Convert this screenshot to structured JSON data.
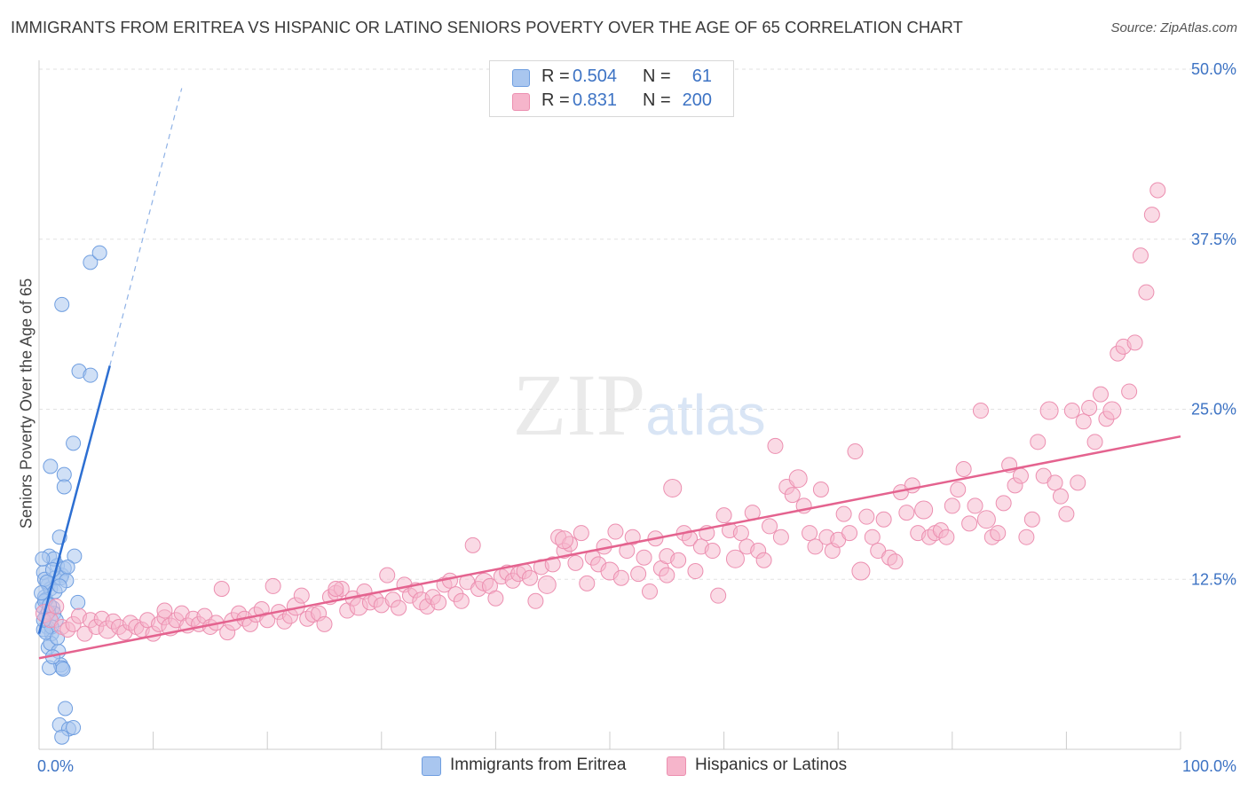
{
  "title": "IMMIGRANTS FROM ERITREA VS HISPANIC OR LATINO SENIORS POVERTY OVER THE AGE OF 65 CORRELATION CHART",
  "source": "Source: ZipAtlas.com",
  "watermark": "ZIPatlas",
  "colors": {
    "blue_fill": "#a9c6ef",
    "blue_stroke": "#6f9ee0",
    "blue_line": "#2d6fd2",
    "pink_fill": "#f6b5cb",
    "pink_stroke": "#ec8fb0",
    "pink_line": "#e4638f",
    "axis_label": "#3d73c4"
  },
  "stats": {
    "blue": {
      "r_label": "R =",
      "r_value": "0.504",
      "n_label": "N =",
      "n_value": "61"
    },
    "pink": {
      "r_label": "R =",
      "r_value": "0.831",
      "n_label": "N =",
      "n_value": "200"
    }
  },
  "legend": {
    "blue_label": "Immigrants from Eritrea",
    "pink_label": "Hispanics or Latinos"
  },
  "chart_data": {
    "type": "scatter",
    "title": "IMMIGRANTS FROM ERITREA VS HISPANIC OR LATINO SENIORS POVERTY OVER THE AGE OF 65 CORRELATION CHART",
    "xlabel": "",
    "ylabel": "Seniors Poverty Over the Age of 65",
    "xlim": [
      0,
      100
    ],
    "ylim": [
      0,
      50
    ],
    "x_tick_labels": [
      "0.0%",
      "100.0%"
    ],
    "y_ticks": [
      12.5,
      25.0,
      37.5,
      50.0
    ],
    "y_tick_labels": [
      "12.5%",
      "25.0%",
      "37.5%",
      "50.0%"
    ],
    "grid": true,
    "legend_position": "bottom-center",
    "series": [
      {
        "name": "Immigrants from Eritrea",
        "color": "#a9c6ef",
        "trend": {
          "x": [
            0.0,
            6.2
          ],
          "y": [
            8.5,
            28.2
          ],
          "dashed_extension": {
            "x": [
              6.2,
              12.5
            ],
            "y": [
              28.2,
              48.6
            ]
          }
        },
        "points": [
          [
            0.3,
            10.5
          ],
          [
            0.5,
            11.2
          ],
          [
            0.6,
            9.8
          ],
          [
            0.8,
            12.1
          ],
          [
            0.4,
            13.0
          ],
          [
            1.0,
            11.8
          ],
          [
            1.2,
            10.4
          ],
          [
            0.7,
            9.0
          ],
          [
            1.4,
            12.6
          ],
          [
            0.9,
            14.2
          ],
          [
            1.6,
            13.5
          ],
          [
            1.1,
            8.5
          ],
          [
            1.8,
            15.6
          ],
          [
            0.6,
            11.0
          ],
          [
            2.0,
            12.8
          ],
          [
            1.3,
            10.0
          ],
          [
            0.4,
            8.8
          ],
          [
            1.5,
            9.5
          ],
          [
            2.2,
            13.3
          ],
          [
            0.8,
            7.5
          ],
          [
            1.0,
            7.8
          ],
          [
            1.7,
            7.2
          ],
          [
            1.9,
            6.2
          ],
          [
            2.0,
            6.0
          ],
          [
            2.1,
            5.9
          ],
          [
            0.9,
            6.0
          ],
          [
            1.2,
            6.8
          ],
          [
            2.3,
            3.0
          ],
          [
            1.8,
            1.8
          ],
          [
            2.6,
            1.5
          ],
          [
            3.0,
            1.6
          ],
          [
            2.0,
            0.9
          ],
          [
            1.0,
            20.8
          ],
          [
            2.2,
            20.2
          ],
          [
            2.2,
            19.3
          ],
          [
            3.0,
            22.5
          ],
          [
            3.5,
            27.8
          ],
          [
            4.5,
            27.5
          ],
          [
            2.0,
            32.7
          ],
          [
            4.5,
            35.8
          ],
          [
            5.3,
            36.5
          ],
          [
            3.1,
            14.2
          ],
          [
            3.4,
            10.8
          ],
          [
            0.5,
            12.5
          ],
          [
            1.3,
            14.0
          ],
          [
            0.7,
            12.3
          ],
          [
            1.9,
            12.6
          ],
          [
            0.3,
            14.0
          ],
          [
            2.5,
            13.4
          ],
          [
            1.1,
            9.0
          ],
          [
            0.5,
            10.9
          ],
          [
            0.2,
            11.5
          ],
          [
            1.4,
            11.6
          ],
          [
            0.8,
            10.1
          ],
          [
            2.4,
            12.4
          ],
          [
            0.6,
            8.6
          ],
          [
            1.6,
            8.2
          ],
          [
            0.4,
            9.5
          ],
          [
            1.2,
            13.2
          ],
          [
            0.9,
            10.6
          ],
          [
            1.8,
            12.0
          ]
        ]
      },
      {
        "name": "Hispanics or Latinos",
        "color": "#f6b5cb",
        "trend": {
          "x": [
            0.0,
            100.0
          ],
          "y": [
            6.7,
            23.0
          ]
        },
        "points": [
          [
            0.5,
            10.0
          ],
          [
            1.0,
            9.5
          ],
          [
            1.5,
            10.5
          ],
          [
            2.0,
            9.0
          ],
          [
            2.5,
            8.8
          ],
          [
            3.0,
            9.2
          ],
          [
            3.5,
            9.8
          ],
          [
            4.0,
            8.5
          ],
          [
            4.5,
            9.5
          ],
          [
            5.0,
            9.0
          ],
          [
            5.5,
            9.6
          ],
          [
            6.0,
            8.8
          ],
          [
            6.5,
            9.4
          ],
          [
            7.0,
            9.0
          ],
          [
            7.5,
            8.6
          ],
          [
            8.0,
            9.3
          ],
          [
            8.5,
            9.0
          ],
          [
            9.0,
            8.8
          ],
          [
            9.5,
            9.5
          ],
          [
            10.0,
            8.5
          ],
          [
            10.5,
            9.2
          ],
          [
            11.0,
            9.7
          ],
          [
            11.5,
            9.0
          ],
          [
            12.0,
            9.5
          ],
          [
            12.5,
            10.0
          ],
          [
            13.0,
            9.1
          ],
          [
            13.5,
            9.6
          ],
          [
            14.0,
            9.2
          ],
          [
            14.5,
            9.8
          ],
          [
            15.0,
            9.0
          ],
          [
            15.5,
            9.3
          ],
          [
            16.0,
            11.8
          ],
          [
            16.5,
            8.6
          ],
          [
            17.0,
            9.4
          ],
          [
            17.5,
            10.0
          ],
          [
            18.0,
            9.6
          ],
          [
            18.5,
            9.2
          ],
          [
            19.0,
            9.9
          ],
          [
            19.5,
            10.3
          ],
          [
            20.0,
            9.5
          ],
          [
            20.5,
            12.0
          ],
          [
            21.0,
            10.1
          ],
          [
            21.5,
            9.4
          ],
          [
            22.0,
            9.8
          ],
          [
            22.5,
            10.5
          ],
          [
            23.0,
            11.3
          ],
          [
            23.5,
            9.6
          ],
          [
            24.0,
            9.9
          ],
          [
            24.5,
            10.0
          ],
          [
            25.0,
            9.2
          ],
          [
            25.5,
            11.2
          ],
          [
            26.0,
            11.5
          ],
          [
            26.5,
            11.8
          ],
          [
            27.0,
            10.2
          ],
          [
            27.5,
            11.1
          ],
          [
            28.0,
            10.5
          ],
          [
            28.5,
            11.6
          ],
          [
            29.0,
            10.8
          ],
          [
            29.5,
            11.0
          ],
          [
            30.0,
            10.6
          ],
          [
            30.5,
            12.8
          ],
          [
            31.0,
            11.0
          ],
          [
            31.5,
            10.4
          ],
          [
            32.0,
            12.1
          ],
          [
            32.5,
            11.3
          ],
          [
            33.0,
            11.7
          ],
          [
            33.5,
            10.9
          ],
          [
            34.0,
            10.5
          ],
          [
            34.5,
            11.2
          ],
          [
            35.0,
            10.8
          ],
          [
            35.5,
            12.1
          ],
          [
            36.0,
            12.4
          ],
          [
            36.5,
            11.4
          ],
          [
            37.0,
            10.9
          ],
          [
            37.5,
            12.3
          ],
          [
            38.0,
            15.0
          ],
          [
            38.5,
            11.8
          ],
          [
            39.0,
            12.3
          ],
          [
            39.5,
            12.0
          ],
          [
            40.0,
            11.1
          ],
          [
            40.5,
            12.7
          ],
          [
            41.0,
            13.0
          ],
          [
            41.5,
            12.4
          ],
          [
            42.0,
            12.9
          ],
          [
            42.5,
            13.1
          ],
          [
            43.0,
            12.6
          ],
          [
            43.5,
            10.9
          ],
          [
            44.0,
            13.4
          ],
          [
            44.5,
            12.1
          ],
          [
            45.0,
            13.6
          ],
          [
            45.5,
            15.6
          ],
          [
            46.0,
            14.6
          ],
          [
            46.5,
            15.1
          ],
          [
            47.0,
            13.7
          ],
          [
            47.5,
            15.9
          ],
          [
            48.0,
            12.2
          ],
          [
            48.5,
            14.1
          ],
          [
            49.0,
            13.6
          ],
          [
            49.5,
            14.9
          ],
          [
            50.0,
            13.1
          ],
          [
            50.5,
            16.0
          ],
          [
            51.0,
            12.6
          ],
          [
            51.5,
            14.6
          ],
          [
            52.0,
            15.6
          ],
          [
            52.5,
            12.9
          ],
          [
            53.0,
            14.1
          ],
          [
            53.5,
            11.6
          ],
          [
            54.0,
            15.5
          ],
          [
            54.5,
            13.3
          ],
          [
            55.0,
            14.2
          ],
          [
            55.5,
            19.2
          ],
          [
            56.0,
            13.9
          ],
          [
            56.5,
            15.9
          ],
          [
            57.0,
            15.5
          ],
          [
            57.5,
            13.1
          ],
          [
            58.0,
            14.9
          ],
          [
            58.5,
            15.9
          ],
          [
            59.0,
            14.6
          ],
          [
            59.5,
            11.3
          ],
          [
            60.0,
            17.2
          ],
          [
            60.5,
            16.1
          ],
          [
            61.0,
            14.0
          ],
          [
            61.5,
            15.9
          ],
          [
            62.0,
            14.9
          ],
          [
            62.5,
            17.4
          ],
          [
            63.0,
            14.6
          ],
          [
            63.5,
            13.9
          ],
          [
            64.0,
            16.4
          ],
          [
            64.5,
            22.3
          ],
          [
            65.0,
            15.6
          ],
          [
            65.5,
            19.3
          ],
          [
            66.0,
            18.7
          ],
          [
            66.5,
            19.9
          ],
          [
            67.0,
            17.9
          ],
          [
            67.5,
            15.9
          ],
          [
            68.0,
            14.9
          ],
          [
            68.5,
            19.1
          ],
          [
            69.0,
            15.6
          ],
          [
            69.5,
            14.6
          ],
          [
            70.0,
            15.4
          ],
          [
            70.5,
            17.3
          ],
          [
            71.0,
            15.9
          ],
          [
            71.5,
            21.9
          ],
          [
            72.0,
            13.1
          ],
          [
            72.5,
            17.1
          ],
          [
            73.0,
            15.6
          ],
          [
            73.5,
            14.6
          ],
          [
            74.0,
            16.9
          ],
          [
            74.5,
            14.1
          ],
          [
            75.0,
            13.8
          ],
          [
            75.5,
            18.9
          ],
          [
            76.0,
            17.4
          ],
          [
            76.5,
            19.4
          ],
          [
            77.0,
            15.9
          ],
          [
            77.5,
            17.6
          ],
          [
            78.0,
            15.6
          ],
          [
            78.5,
            15.9
          ],
          [
            79.0,
            16.1
          ],
          [
            79.5,
            15.6
          ],
          [
            80.0,
            17.9
          ],
          [
            80.5,
            19.1
          ],
          [
            81.0,
            20.6
          ],
          [
            81.5,
            16.6
          ],
          [
            82.0,
            17.9
          ],
          [
            82.5,
            24.9
          ],
          [
            83.0,
            16.9
          ],
          [
            83.5,
            15.6
          ],
          [
            84.0,
            15.9
          ],
          [
            84.5,
            18.1
          ],
          [
            85.0,
            20.9
          ],
          [
            85.5,
            19.4
          ],
          [
            86.0,
            20.1
          ],
          [
            86.5,
            15.6
          ],
          [
            87.0,
            16.9
          ],
          [
            87.5,
            22.6
          ],
          [
            88.0,
            20.1
          ],
          [
            88.5,
            24.9
          ],
          [
            89.0,
            19.6
          ],
          [
            89.5,
            18.6
          ],
          [
            90.0,
            17.3
          ],
          [
            90.5,
            24.9
          ],
          [
            91.0,
            19.6
          ],
          [
            91.5,
            24.1
          ],
          [
            92.0,
            25.1
          ],
          [
            92.5,
            22.6
          ],
          [
            93.0,
            26.1
          ],
          [
            93.5,
            24.3
          ],
          [
            94.0,
            24.9
          ],
          [
            94.5,
            29.1
          ],
          [
            95.0,
            29.6
          ],
          [
            95.5,
            26.3
          ],
          [
            96.0,
            29.9
          ],
          [
            96.5,
            36.3
          ],
          [
            97.0,
            33.6
          ],
          [
            97.5,
            39.3
          ],
          [
            98.0,
            41.1
          ],
          [
            11.0,
            10.2
          ],
          [
            26.0,
            11.8
          ],
          [
            46.0,
            15.4
          ],
          [
            55.0,
            12.8
          ]
        ]
      }
    ]
  }
}
